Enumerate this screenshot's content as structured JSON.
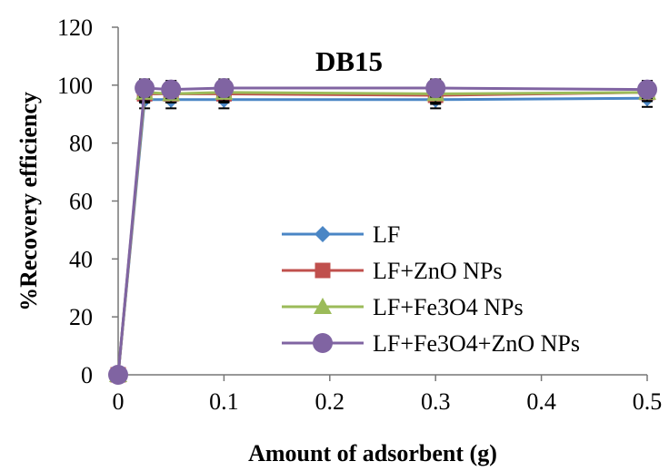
{
  "chart_data": {
    "type": "line",
    "title": "DB15",
    "xlabel": "Amount of adsorbent (g)",
    "ylabel": "%Recovery efficiency",
    "xlim": [
      0,
      0.5
    ],
    "ylim": [
      0,
      120
    ],
    "x_ticks": [
      "0",
      "0.1",
      "0.2",
      "0.3",
      "0.4",
      "0.5"
    ],
    "y_ticks": [
      "0",
      "20",
      "40",
      "60",
      "80",
      "100",
      "120"
    ],
    "grid": false,
    "legend_position": "bottom-right",
    "x": [
      0,
      0.025,
      0.05,
      0.1,
      0.3,
      0.5
    ],
    "series": [
      {
        "name": "LF",
        "values": [
          0,
          95,
          95,
          95,
          95,
          95.5
        ],
        "color": "#4A86C5",
        "marker": "diamond"
      },
      {
        "name": "LF+ZnO NPs",
        "values": [
          0,
          97,
          97,
          97,
          96.5,
          97.5
        ],
        "color": "#C0504D",
        "marker": "square"
      },
      {
        "name": "LF+Fe3O4 NPs",
        "values": [
          0,
          97.5,
          97,
          97.5,
          97,
          97.5
        ],
        "color": "#9BBB59",
        "marker": "triangle"
      },
      {
        "name": "LF+Fe3O4+ZnO NPs",
        "values": [
          0,
          99,
          98.5,
          99,
          99,
          98.5
        ],
        "color": "#8064A2",
        "marker": "circle"
      }
    ],
    "error_bar": 3
  }
}
